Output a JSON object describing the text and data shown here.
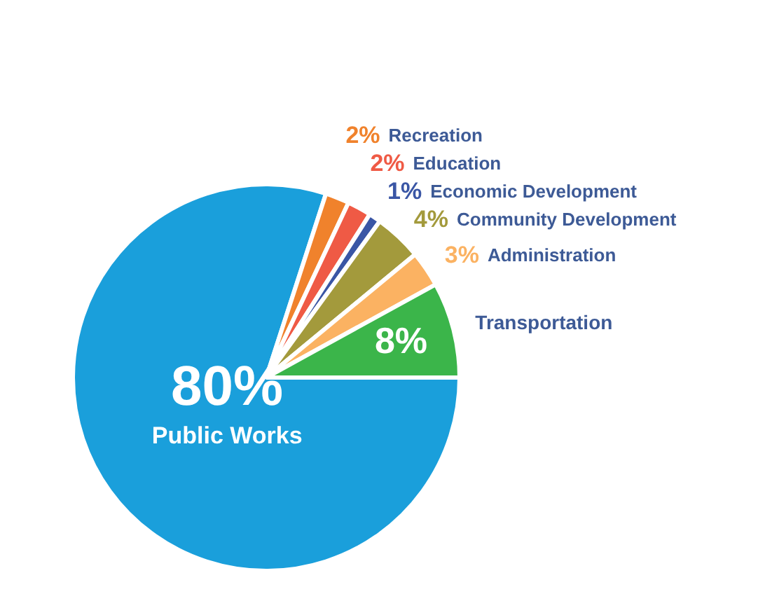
{
  "chart_data": {
    "type": "pie",
    "categories": [
      "Public Works",
      "Recreation",
      "Education",
      "Economic Development",
      "Community Development",
      "Administration",
      "Transportation"
    ],
    "values": [
      80,
      2,
      2,
      1,
      4,
      3,
      8
    ],
    "value_labels": [
      "80%",
      "2%",
      "2%",
      "1%",
      "4%",
      "3%",
      "8%"
    ],
    "colors": [
      "#1a9fdb",
      "#f0822c",
      "#ef5a45",
      "#3a56a5",
      "#a39a3c",
      "#fbb262",
      "#3bb54a"
    ],
    "legend": false
  }
}
